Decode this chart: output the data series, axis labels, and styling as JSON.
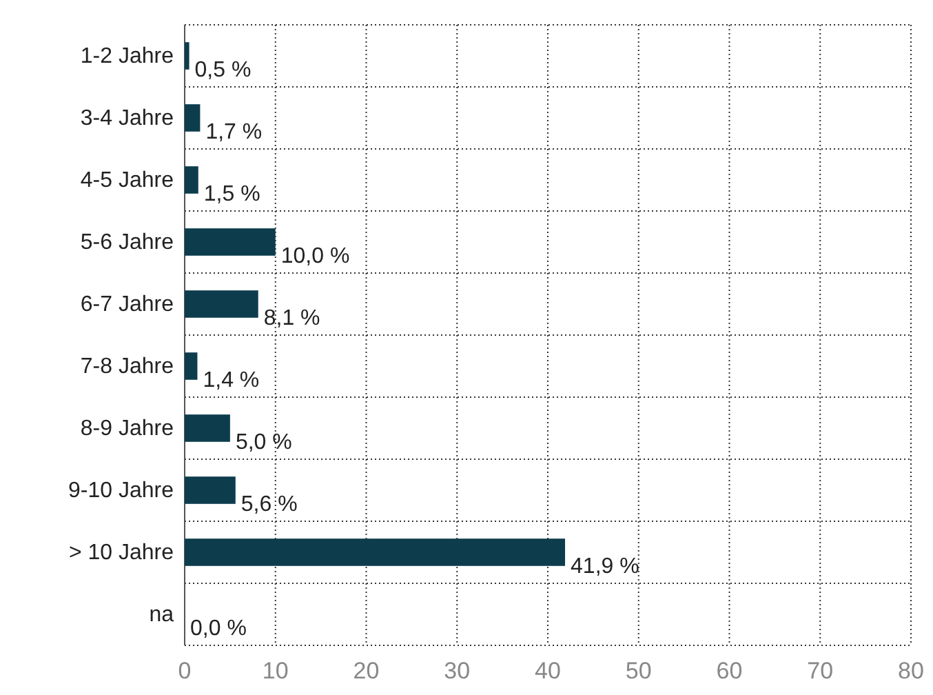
{
  "chart_data": {
    "type": "bar",
    "orientation": "horizontal",
    "categories": [
      "1-2 Jahre",
      "3-4 Jahre",
      "4-5 Jahre",
      "5-6 Jahre",
      "6-7 Jahre",
      "7-8 Jahre",
      "8-9 Jahre",
      "9-10 Jahre",
      "> 10 Jahre",
      "na"
    ],
    "values": [
      0.5,
      1.7,
      1.5,
      10.0,
      8.1,
      1.4,
      5.0,
      5.6,
      41.9,
      0.0
    ],
    "value_labels": [
      "0,5 %",
      "1,7 %",
      "1,5 %",
      "10,0 %",
      "8,1 %",
      "1,4 %",
      "5,0 %",
      "5,6 %",
      "41,9 %",
      "0,0 %"
    ],
    "color": "#0d3d4d",
    "xlim": [
      0,
      80
    ],
    "xticks": [
      0,
      10,
      20,
      30,
      40,
      50,
      60,
      70,
      80
    ],
    "grid": true
  }
}
